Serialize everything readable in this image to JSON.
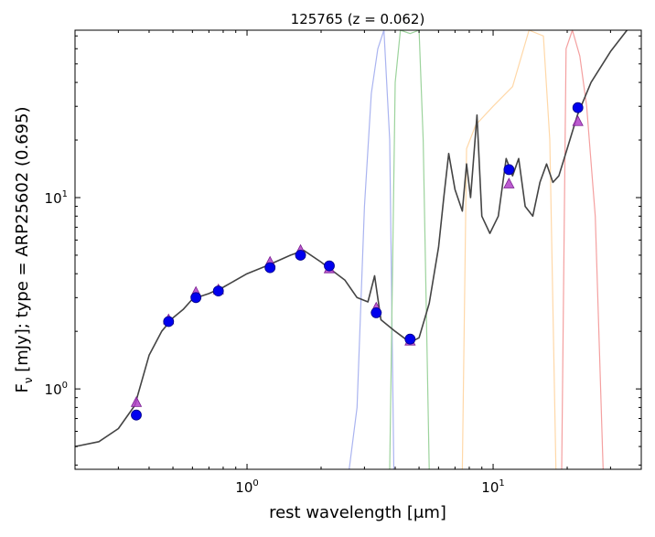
{
  "chart_data": {
    "type": "scatter",
    "title": "125765 (z = 0.062)",
    "xlabel": "rest wavelength [μm]",
    "ylabel": "F_ν [mJy];  type = ARP25602 (0.695)",
    "x_scale": "log",
    "y_scale": "log",
    "xlim": [
      0.2,
      40
    ],
    "ylim": [
      0.38,
      75
    ],
    "x_tick_labels": [
      {
        "value": 1,
        "label": "10^0"
      },
      {
        "value": 10,
        "label": "10^1"
      }
    ],
    "y_tick_labels": [
      {
        "value": 1,
        "label": "10^0"
      },
      {
        "value": 10,
        "label": "10^1"
      }
    ],
    "series": [
      {
        "marker": "circle",
        "color": "#0000ee",
        "points": [
          [
            0.355,
            0.73
          ],
          [
            0.48,
            2.25
          ],
          [
            0.62,
            3.0
          ],
          [
            0.765,
            3.25
          ],
          [
            1.24,
            4.3
          ],
          [
            1.65,
            5.0
          ],
          [
            2.16,
            4.4
          ],
          [
            3.35,
            2.5
          ],
          [
            4.6,
            1.82
          ],
          [
            11.6,
            14.0
          ],
          [
            22.1,
            29.5
          ]
        ]
      },
      {
        "marker": "triangle",
        "color": "#b040c8",
        "points": [
          [
            0.355,
            0.85
          ],
          [
            0.48,
            2.3
          ],
          [
            0.62,
            3.2
          ],
          [
            0.765,
            3.3
          ],
          [
            1.24,
            4.6
          ],
          [
            1.65,
            5.3
          ],
          [
            2.16,
            4.25
          ],
          [
            3.35,
            2.65
          ],
          [
            4.6,
            1.78
          ],
          [
            11.6,
            11.8
          ],
          [
            22.1,
            25.0
          ]
        ]
      },
      {
        "style": "line",
        "color": "#444444",
        "points": [
          [
            0.2,
            0.5
          ],
          [
            0.25,
            0.53
          ],
          [
            0.3,
            0.62
          ],
          [
            0.35,
            0.82
          ],
          [
            0.4,
            1.5
          ],
          [
            0.45,
            2.0
          ],
          [
            0.5,
            2.35
          ],
          [
            0.55,
            2.6
          ],
          [
            0.6,
            2.95
          ],
          [
            0.7,
            3.15
          ],
          [
            0.8,
            3.4
          ],
          [
            1.0,
            4.0
          ],
          [
            1.2,
            4.4
          ],
          [
            1.5,
            5.0
          ],
          [
            1.7,
            5.3
          ],
          [
            2.0,
            4.6
          ],
          [
            2.5,
            3.7
          ],
          [
            2.8,
            3.0
          ],
          [
            3.1,
            2.85
          ],
          [
            3.3,
            3.9
          ],
          [
            3.5,
            2.3
          ],
          [
            4.0,
            2.0
          ],
          [
            4.6,
            1.75
          ],
          [
            5.0,
            1.85
          ],
          [
            5.5,
            2.8
          ],
          [
            6.0,
            5.5
          ],
          [
            6.3,
            10.0
          ],
          [
            6.6,
            17.0
          ],
          [
            7.0,
            11.0
          ],
          [
            7.5,
            8.5
          ],
          [
            7.8,
            15.0
          ],
          [
            8.1,
            10.0
          ],
          [
            8.6,
            27.0
          ],
          [
            9.0,
            8.0
          ],
          [
            9.7,
            6.5
          ],
          [
            10.5,
            8.0
          ],
          [
            11.3,
            16.0
          ],
          [
            12.0,
            13.0
          ],
          [
            12.7,
            16.0
          ],
          [
            13.5,
            9.0
          ],
          [
            14.5,
            8.0
          ],
          [
            15.5,
            12.0
          ],
          [
            16.5,
            15.0
          ],
          [
            17.5,
            12.0
          ],
          [
            18.5,
            13.0
          ],
          [
            20.0,
            18.0
          ],
          [
            22.0,
            27.0
          ],
          [
            25.0,
            40.0
          ],
          [
            30.0,
            58.0
          ],
          [
            35.0,
            75.0
          ]
        ]
      },
      {
        "style": "line",
        "color": "#aab4f0",
        "points": [
          [
            2.6,
            0.38
          ],
          [
            2.8,
            0.8
          ],
          [
            3.0,
            9.0
          ],
          [
            3.2,
            35.0
          ],
          [
            3.4,
            60.0
          ],
          [
            3.6,
            75.0
          ],
          [
            3.8,
            20.0
          ],
          [
            3.95,
            0.38
          ]
        ]
      },
      {
        "style": "line",
        "color": "#9cd39c",
        "points": [
          [
            3.8,
            0.38
          ],
          [
            4.0,
            40.0
          ],
          [
            4.2,
            75.0
          ],
          [
            4.6,
            72.0
          ],
          [
            5.0,
            75.0
          ],
          [
            5.2,
            20.0
          ],
          [
            5.5,
            0.38
          ]
        ]
      },
      {
        "style": "line",
        "color": "#ffd8a8",
        "points": [
          [
            7.5,
            0.38
          ],
          [
            7.8,
            18.0
          ],
          [
            8.5,
            24.0
          ],
          [
            10.0,
            30.0
          ],
          [
            12.0,
            38.0
          ],
          [
            14.0,
            75.0
          ],
          [
            16.0,
            70.0
          ],
          [
            17.0,
            20.0
          ],
          [
            18.0,
            0.38
          ]
        ]
      },
      {
        "style": "line",
        "color": "#f4a0a0",
        "points": [
          [
            19.0,
            0.38
          ],
          [
            19.8,
            60.0
          ],
          [
            21.0,
            75.0
          ],
          [
            22.5,
            55.0
          ],
          [
            24.0,
            30.0
          ],
          [
            26.0,
            8.0
          ],
          [
            28.0,
            0.38
          ]
        ]
      }
    ]
  }
}
